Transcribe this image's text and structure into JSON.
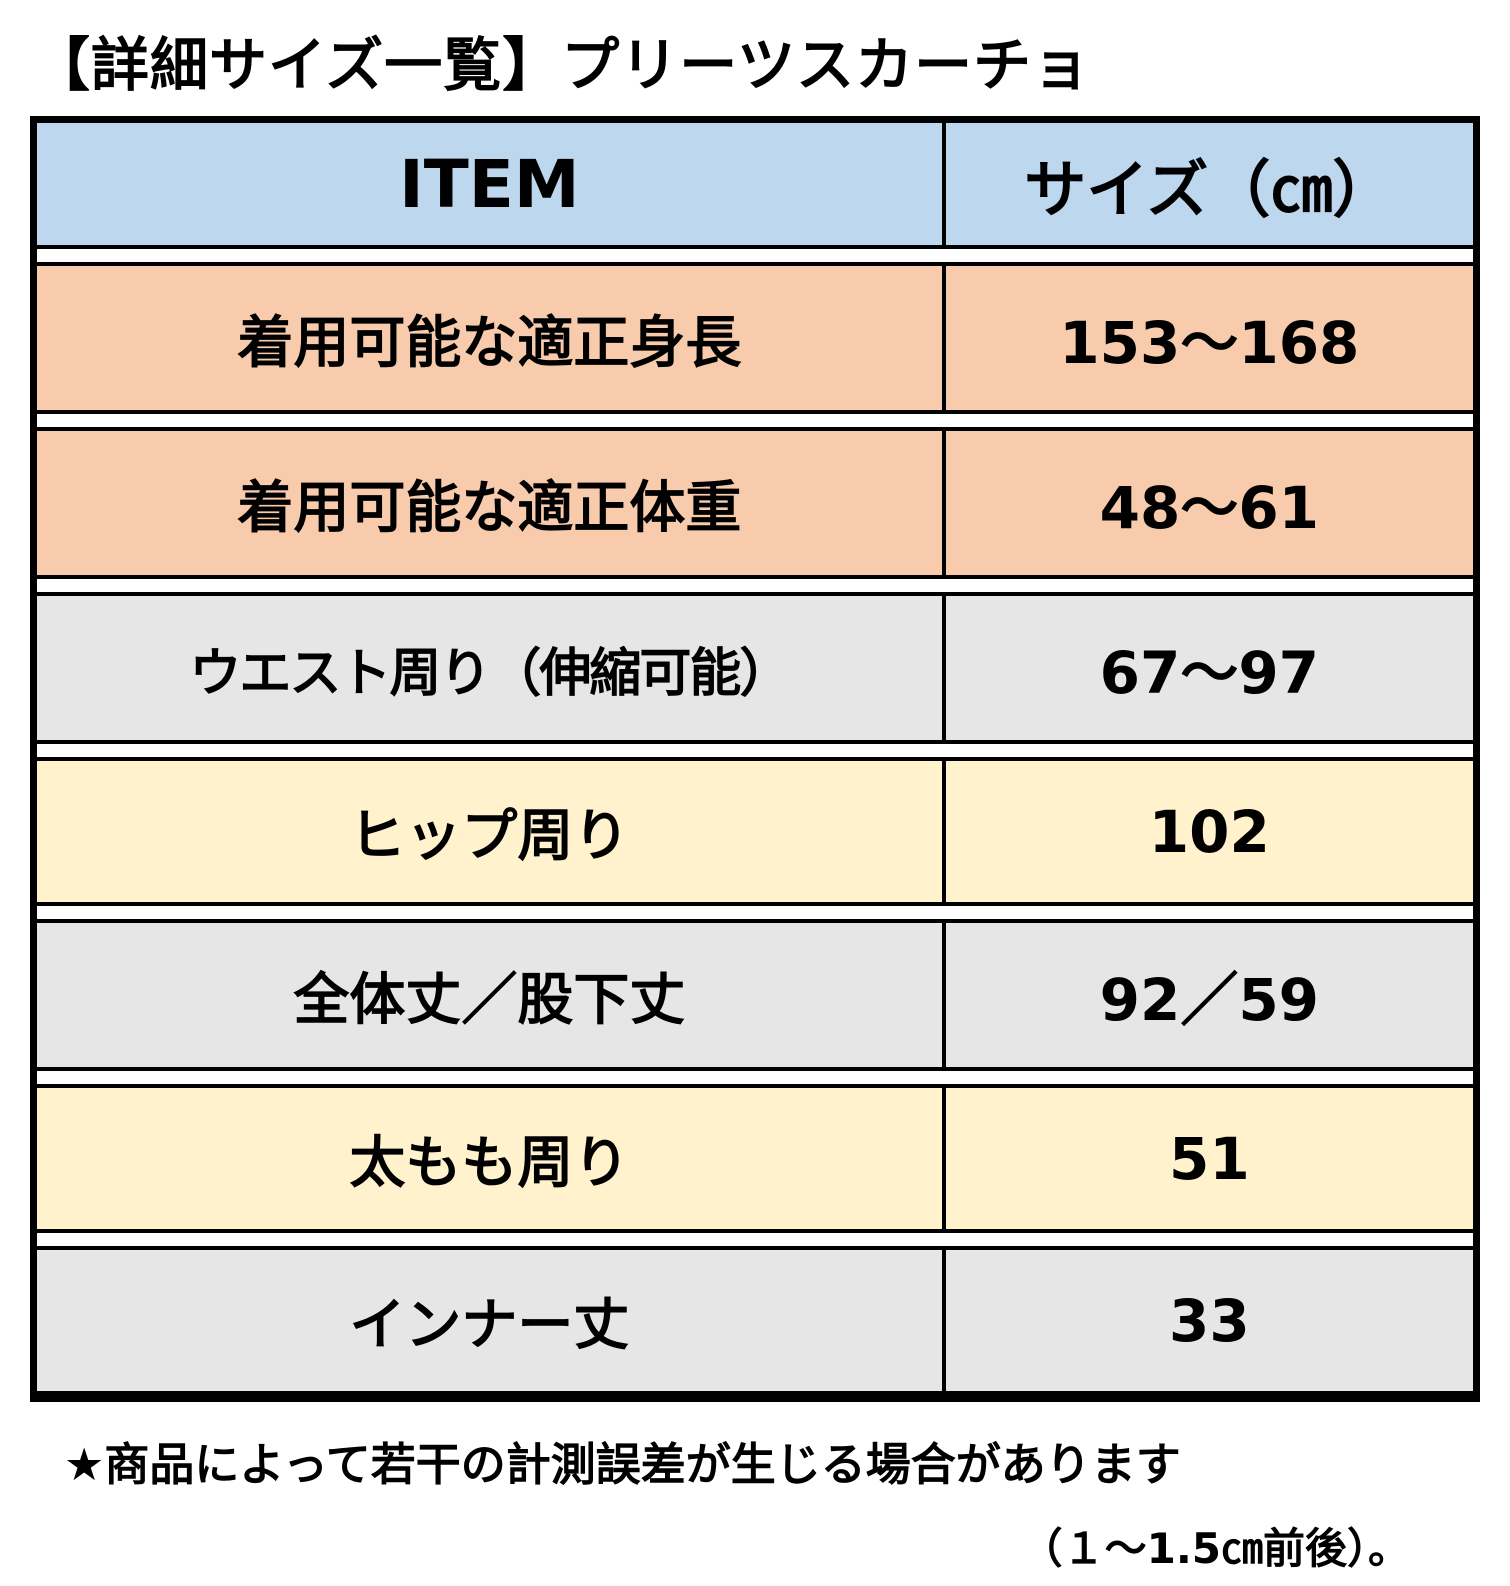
{
  "title": "【詳細サイズ一覧】プリーツスカーチョ",
  "table": {
    "header": {
      "item": "ITEM",
      "size": "サイズ（㎝）"
    },
    "rows": [
      {
        "item": "着用可能な適正身長",
        "size": "153～168",
        "row_color": "salmon"
      },
      {
        "item": "着用可能な適正体重",
        "size": "48～61",
        "row_color": "salmon"
      },
      {
        "item": "ウエスト周り（伸縮可能）",
        "size": "67～97",
        "row_color": "gray"
      },
      {
        "item": "ヒップ周り",
        "size": "102",
        "row_color": "yellow"
      },
      {
        "item": "全体丈／股下丈",
        "size": "92／59",
        "row_color": "gray"
      },
      {
        "item": "太もも周り",
        "size": "51",
        "row_color": "yellow"
      },
      {
        "item": "インナー丈",
        "size": "33",
        "row_color": "gray"
      }
    ]
  },
  "footer": {
    "note": "★商品によって若干の計測誤差が生じる場合があります",
    "note2": "（１～1.5㎝前後）。"
  },
  "colors": {
    "header_blue": "#BDD7EE",
    "salmon": "#F7CBAC",
    "gray": "#E7E6E6",
    "yellow": "#FFF2CC",
    "border": "#000000"
  }
}
